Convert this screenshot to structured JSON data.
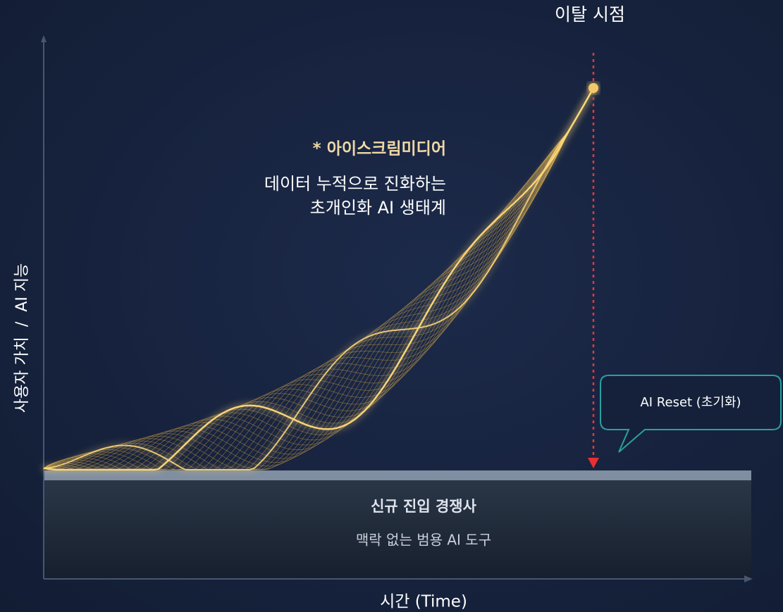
{
  "churn_label": "이탈 시점",
  "brand": "* 아이스크림미디어",
  "description": [
    "데이터 누적으로 진화하는",
    "초개인화 AI 생태계"
  ],
  "y_axis_label": "사용자 가치  /  AI 지능",
  "callout": "AI Reset (초기화)",
  "competitor": {
    "title": "신규 진입 경쟁사",
    "subtitle": "맥락 없는 범용 AI 도구"
  },
  "x_axis_label": "시간 (Time)"
}
